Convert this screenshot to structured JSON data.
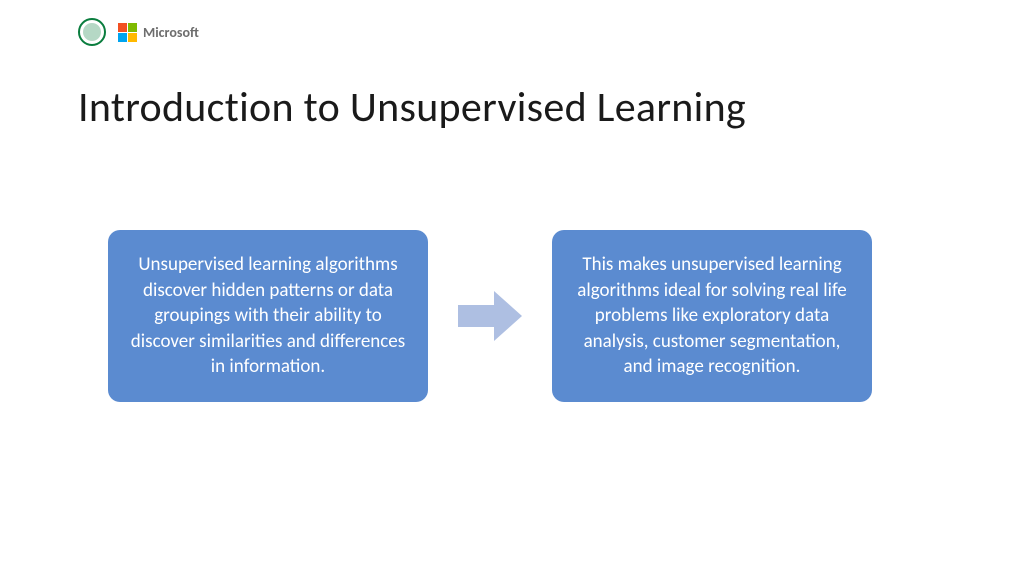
{
  "header": {
    "ms_label": "Microsoft",
    "ms_colors": [
      "#f25022",
      "#7fba00",
      "#00a4ef",
      "#ffb900"
    ],
    "circle_logo_color": "#0a7d3e"
  },
  "title": "Introduction to Unsupervised Learning",
  "cards": {
    "left": "Unsupervised learning algorithms discover hidden patterns or data groupings with their ability to discover similarities and differences in information.",
    "right": "This makes unsupervised learning algorithms ideal for solving real life problems like exploratory data analysis, customer segmentation, and image recognition."
  },
  "style": {
    "card_bg": "#5b8bd0",
    "arrow_color": "#aebfe2",
    "title_color": "#1a1a1a",
    "background": "#ffffff"
  }
}
